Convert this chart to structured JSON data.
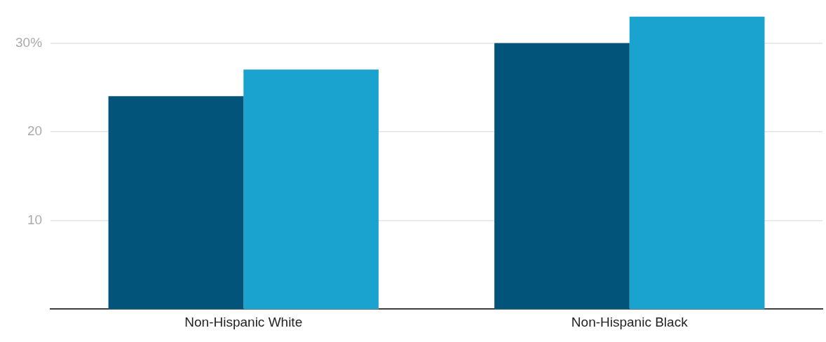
{
  "chart_data": {
    "type": "bar",
    "categories": [
      "Non-Hispanic White",
      "Non-Hispanic Black"
    ],
    "series": [
      {
        "color": "#02547a",
        "values": [
          24,
          30
        ]
      },
      {
        "color": "#1ba3cf",
        "values": [
          27,
          33
        ]
      }
    ],
    "ylim": [
      0,
      33
    ],
    "yticks": [
      10,
      20,
      {
        "value": 30,
        "label": "30%"
      }
    ],
    "grid": "y",
    "legend": false
  }
}
